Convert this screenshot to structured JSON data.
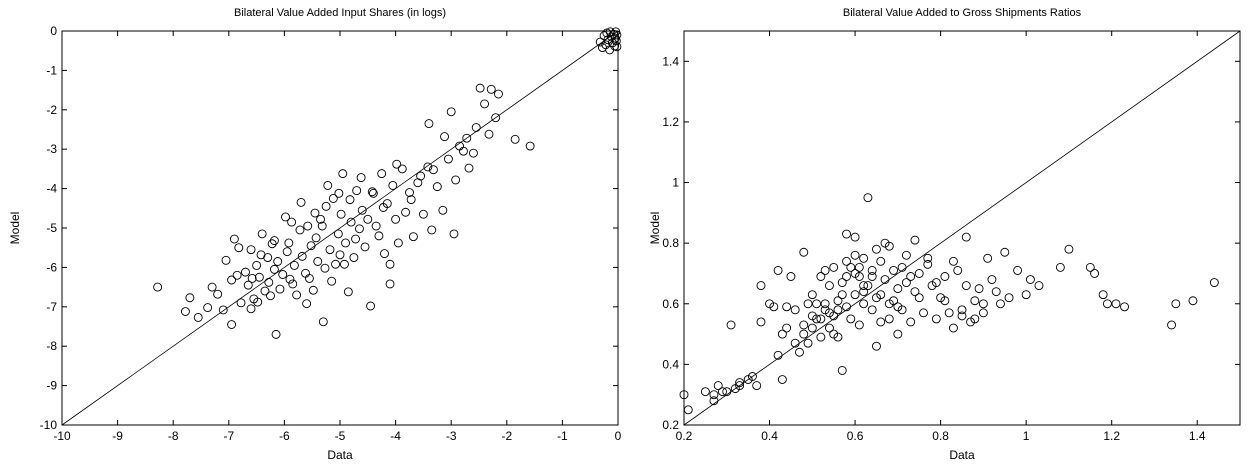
{
  "chart_data": [
    {
      "type": "scatter",
      "title": "Bilateral Value Added Input Shares (in logs)",
      "xlabel": "Data",
      "ylabel": "Model",
      "xlim": [
        -10,
        0
      ],
      "ylim": [
        -10,
        0
      ],
      "xticks": [
        -10,
        -9,
        -8,
        -7,
        -6,
        -5,
        -4,
        -3,
        -2,
        -1,
        0
      ],
      "yticks": [
        -10,
        -9,
        -8,
        -7,
        -6,
        -5,
        -4,
        -3,
        -2,
        -1,
        0
      ],
      "x_tick_labels": [
        "-10",
        "-9",
        "-8",
        "-7",
        "-6",
        "-5",
        "-4",
        "-3",
        "-2",
        "-1",
        "0"
      ],
      "y_tick_labels": [
        "-10",
        "-9",
        "-8",
        "-7",
        "-6",
        "-5",
        "-4",
        "-3",
        "-2",
        "-1",
        "0"
      ],
      "grid": false,
      "reference_line": "y = x",
      "marker": "open-circle",
      "points": [
        [
          -8.28,
          -6.5
        ],
        [
          -7.78,
          -7.12
        ],
        [
          -7.7,
          -6.77
        ],
        [
          -7.55,
          -7.27
        ],
        [
          -7.38,
          -7.02
        ],
        [
          -7.3,
          -6.5
        ],
        [
          -7.2,
          -6.68
        ],
        [
          -7.1,
          -7.08
        ],
        [
          -6.95,
          -7.45
        ],
        [
          -6.9,
          -5.28
        ],
        [
          -6.85,
          -6.2
        ],
        [
          -6.82,
          -5.5
        ],
        [
          -6.7,
          -6.12
        ],
        [
          -6.65,
          -6.45
        ],
        [
          -6.6,
          -5.55
        ],
        [
          -6.55,
          -6.8
        ],
        [
          -6.5,
          -5.95
        ],
        [
          -6.45,
          -6.25
        ],
        [
          -6.4,
          -5.15
        ],
        [
          -6.35,
          -6.6
        ],
        [
          -6.3,
          -5.75
        ],
        [
          -6.28,
          -6.38
        ],
        [
          -6.22,
          -5.4
        ],
        [
          -6.18,
          -6.05
        ],
        [
          -6.12,
          -5.85
        ],
        [
          -6.08,
          -6.55
        ],
        [
          -6.03,
          -6.18
        ],
        [
          -5.98,
          -4.72
        ],
        [
          -5.95,
          -5.6
        ],
        [
          -5.9,
          -6.3
        ],
        [
          -5.87,
          -4.85
        ],
        [
          -5.82,
          -5.95
        ],
        [
          -5.78,
          -6.7
        ],
        [
          -5.72,
          -5.05
        ],
        [
          -5.68,
          -5.72
        ],
        [
          -5.62,
          -6.15
        ],
        [
          -5.58,
          -4.95
        ],
        [
          -5.52,
          -5.45
        ],
        [
          -5.48,
          -6.58
        ],
        [
          -5.43,
          -5.25
        ],
        [
          -5.4,
          -5.85
        ],
        [
          -5.35,
          -4.78
        ],
        [
          -5.3,
          -7.38
        ],
        [
          -5.27,
          -6.02
        ],
        [
          -5.22,
          -3.92
        ],
        [
          -5.18,
          -5.55
        ],
        [
          -5.12,
          -4.25
        ],
        [
          -5.08,
          -5.92
        ],
        [
          -5.03,
          -5.15
        ],
        [
          -4.98,
          -4.65
        ],
        [
          -4.95,
          -3.62
        ],
        [
          -4.9,
          -5.38
        ],
        [
          -4.85,
          -6.62
        ],
        [
          -4.8,
          -4.85
        ],
        [
          -4.75,
          -5.75
        ],
        [
          -4.7,
          -4.05
        ],
        [
          -4.65,
          -5.02
        ],
        [
          -4.6,
          -4.55
        ],
        [
          -4.55,
          -5.48
        ],
        [
          -4.5,
          -4.78
        ],
        [
          -4.45,
          -6.98
        ],
        [
          -4.4,
          -4.12
        ],
        [
          -4.35,
          -4.95
        ],
        [
          -4.3,
          -5.2
        ],
        [
          -4.25,
          -3.62
        ],
        [
          -4.2,
          -5.65
        ],
        [
          -4.15,
          -4.38
        ],
        [
          -4.1,
          -5.92
        ],
        [
          -4.05,
          -3.92
        ],
        [
          -4.0,
          -4.78
        ],
        [
          -3.95,
          -5.38
        ],
        [
          -3.88,
          -3.5
        ],
        [
          -3.82,
          -4.6
        ],
        [
          -3.75,
          -4.1
        ],
        [
          -3.68,
          -5.22
        ],
        [
          -3.6,
          -3.85
        ],
        [
          -3.5,
          -4.65
        ],
        [
          -3.42,
          -3.45
        ],
        [
          -3.35,
          -5.05
        ],
        [
          -3.25,
          -3.95
        ],
        [
          -3.15,
          -4.55
        ],
        [
          -3.05,
          -3.25
        ],
        [
          -2.95,
          -5.15
        ],
        [
          -2.85,
          -2.92
        ],
        [
          -2.78,
          -3.05
        ],
        [
          -2.72,
          -2.72
        ],
        [
          -2.6,
          -3.1
        ],
        [
          -2.55,
          -2.45
        ],
        [
          -2.48,
          -1.45
        ],
        [
          -2.4,
          -1.85
        ],
        [
          -2.32,
          -2.62
        ],
        [
          -2.28,
          -1.48
        ],
        [
          -2.2,
          -2.2
        ],
        [
          -2.15,
          -1.6
        ],
        [
          -1.85,
          -2.75
        ],
        [
          -1.58,
          -2.92
        ],
        [
          -3.4,
          -2.35
        ],
        [
          -3.0,
          -2.05
        ],
        [
          -6.15,
          -7.7
        ],
        [
          -6.6,
          -7.05
        ],
        [
          -5.6,
          -6.92
        ],
        [
          -4.1,
          -6.42
        ],
        [
          -0.32,
          -0.28
        ],
        [
          -0.28,
          -0.42
        ],
        [
          -0.25,
          -0.12
        ],
        [
          -0.22,
          -0.35
        ],
        [
          -0.2,
          -0.05
        ],
        [
          -0.18,
          -0.22
        ],
        [
          -0.15,
          -0.48
        ],
        [
          -0.14,
          -0.02
        ],
        [
          -0.12,
          -0.15
        ],
        [
          -0.1,
          -0.3
        ],
        [
          -0.08,
          -0.08
        ],
        [
          -0.06,
          -0.38
        ],
        [
          -0.05,
          -0.18
        ],
        [
          -0.04,
          -0.02
        ],
        [
          -0.03,
          -0.25
        ],
        [
          -0.02,
          -0.1
        ],
        [
          -0.02,
          -0.4
        ],
        [
          -6.78,
          -6.9
        ],
        [
          -6.58,
          -6.28
        ],
        [
          -6.42,
          -5.68
        ],
        [
          -6.18,
          -5.32
        ],
        [
          -5.92,
          -5.38
        ],
        [
          -5.7,
          -4.35
        ],
        [
          -5.45,
          -4.62
        ],
        [
          -5.25,
          -4.45
        ],
        [
          -5.0,
          -5.68
        ],
        [
          -4.82,
          -4.28
        ],
        [
          -4.62,
          -3.72
        ],
        [
          -4.42,
          -4.08
        ],
        [
          -4.22,
          -4.48
        ],
        [
          -3.98,
          -3.38
        ],
        [
          -3.72,
          -4.28
        ],
        [
          -3.55,
          -3.68
        ],
        [
          -3.32,
          -3.52
        ],
        [
          -3.12,
          -2.68
        ],
        [
          -2.92,
          -3.78
        ],
        [
          -2.68,
          -3.48
        ],
        [
          -6.95,
          -6.32
        ],
        [
          -7.05,
          -5.82
        ],
        [
          -6.48,
          -6.88
        ],
        [
          -6.25,
          -6.72
        ],
        [
          -5.85,
          -6.42
        ],
        [
          -5.55,
          -6.28
        ],
        [
          -5.15,
          -6.35
        ],
        [
          -4.92,
          -5.92
        ],
        [
          -4.72,
          -5.28
        ],
        [
          -5.02,
          -4.12
        ],
        [
          -5.32,
          -4.95
        ]
      ]
    },
    {
      "type": "scatter",
      "title": "Bilateral Value Added to Gross Shipments Ratios",
      "xlabel": "Data",
      "ylabel": "Model",
      "xlim": [
        0.2,
        1.5
      ],
      "ylim": [
        0.2,
        1.5
      ],
      "xticks": [
        0.2,
        0.4,
        0.6,
        0.8,
        1.0,
        1.2,
        1.4
      ],
      "yticks": [
        0.2,
        0.4,
        0.6,
        0.8,
        1.0,
        1.2,
        1.4
      ],
      "x_tick_labels": [
        "0.2",
        "0.4",
        "0.6",
        "0.8",
        "1",
        "1.2",
        "1.4"
      ],
      "y_tick_labels": [
        "0.2",
        "0.4",
        "0.6",
        "0.8",
        "1",
        "1.2",
        "1.4"
      ],
      "grid": false,
      "reference_line": "y = x",
      "marker": "open-circle",
      "points": [
        [
          0.2,
          0.3
        ],
        [
          0.21,
          0.25
        ],
        [
          0.25,
          0.31
        ],
        [
          0.27,
          0.28
        ],
        [
          0.28,
          0.33
        ],
        [
          0.3,
          0.31
        ],
        [
          0.31,
          0.53
        ],
        [
          0.32,
          0.32
        ],
        [
          0.33,
          0.34
        ],
        [
          0.35,
          0.35
        ],
        [
          0.37,
          0.33
        ],
        [
          0.38,
          0.54
        ],
        [
          0.4,
          0.6
        ],
        [
          0.42,
          0.71
        ],
        [
          0.42,
          0.43
        ],
        [
          0.43,
          0.5
        ],
        [
          0.43,
          0.35
        ],
        [
          0.44,
          0.59
        ],
        [
          0.45,
          0.69
        ],
        [
          0.46,
          0.58
        ],
        [
          0.47,
          0.44
        ],
        [
          0.48,
          0.77
        ],
        [
          0.48,
          0.53
        ],
        [
          0.49,
          0.6
        ],
        [
          0.49,
          0.47
        ],
        [
          0.5,
          0.63
        ],
        [
          0.51,
          0.55
        ],
        [
          0.52,
          0.69
        ],
        [
          0.52,
          0.49
        ],
        [
          0.53,
          0.6
        ],
        [
          0.53,
          0.58
        ],
        [
          0.54,
          0.66
        ],
        [
          0.54,
          0.52
        ],
        [
          0.55,
          0.72
        ],
        [
          0.55,
          0.56
        ],
        [
          0.56,
          0.61
        ],
        [
          0.56,
          0.49
        ],
        [
          0.57,
          0.38
        ],
        [
          0.57,
          0.67
        ],
        [
          0.58,
          0.83
        ],
        [
          0.58,
          0.59
        ],
        [
          0.59,
          0.55
        ],
        [
          0.59,
          0.72
        ],
        [
          0.6,
          0.76
        ],
        [
          0.6,
          0.63
        ],
        [
          0.61,
          0.69
        ],
        [
          0.61,
          0.53
        ],
        [
          0.62,
          0.6
        ],
        [
          0.62,
          0.75
        ],
        [
          0.63,
          0.95
        ],
        [
          0.63,
          0.66
        ],
        [
          0.64,
          0.58
        ],
        [
          0.64,
          0.71
        ],
        [
          0.65,
          0.46
        ],
        [
          0.66,
          0.74
        ],
        [
          0.66,
          0.63
        ],
        [
          0.67,
          0.68
        ],
        [
          0.68,
          0.55
        ],
        [
          0.68,
          0.79
        ],
        [
          0.69,
          0.61
        ],
        [
          0.7,
          0.65
        ],
        [
          0.7,
          0.5
        ],
        [
          0.71,
          0.72
        ],
        [
          0.71,
          0.58
        ],
        [
          0.72,
          0.67
        ],
        [
          0.73,
          0.69
        ],
        [
          0.73,
          0.54
        ],
        [
          0.74,
          0.81
        ],
        [
          0.75,
          0.62
        ],
        [
          0.76,
          0.57
        ],
        [
          0.77,
          0.73
        ],
        [
          0.78,
          0.66
        ],
        [
          0.79,
          0.55
        ],
        [
          0.8,
          0.62
        ],
        [
          0.81,
          0.69
        ],
        [
          0.82,
          0.57
        ],
        [
          0.83,
          0.52
        ],
        [
          0.84,
          0.71
        ],
        [
          0.85,
          0.58
        ],
        [
          0.86,
          0.82
        ],
        [
          0.87,
          0.54
        ],
        [
          0.88,
          0.61
        ],
        [
          0.89,
          0.65
        ],
        [
          0.9,
          0.57
        ],
        [
          0.92,
          0.68
        ],
        [
          0.94,
          0.6
        ],
        [
          0.95,
          0.77
        ],
        [
          0.98,
          0.71
        ],
        [
          1.0,
          0.63
        ],
        [
          1.03,
          0.66
        ],
        [
          1.08,
          0.72
        ],
        [
          1.1,
          0.78
        ],
        [
          1.15,
          0.72
        ],
        [
          1.16,
          0.7
        ],
        [
          1.18,
          0.63
        ],
        [
          1.19,
          0.6
        ],
        [
          1.21,
          0.6
        ],
        [
          1.23,
          0.59
        ],
        [
          1.34,
          0.53
        ],
        [
          1.35,
          0.6
        ],
        [
          1.39,
          0.61
        ],
        [
          1.44,
          0.67
        ],
        [
          0.27,
          0.3
        ],
        [
          0.29,
          0.31
        ],
        [
          0.33,
          0.33
        ],
        [
          0.36,
          0.36
        ],
        [
          0.38,
          0.66
        ],
        [
          0.41,
          0.59
        ],
        [
          0.44,
          0.52
        ],
        [
          0.46,
          0.47
        ],
        [
          0.5,
          0.56
        ],
        [
          0.51,
          0.6
        ],
        [
          0.53,
          0.71
        ],
        [
          0.55,
          0.5
        ],
        [
          0.57,
          0.63
        ],
        [
          0.58,
          0.74
        ],
        [
          0.6,
          0.82
        ],
        [
          0.61,
          0.72
        ],
        [
          0.62,
          0.64
        ],
        [
          0.64,
          0.69
        ],
        [
          0.65,
          0.78
        ],
        [
          0.66,
          0.54
        ],
        [
          0.67,
          0.8
        ],
        [
          0.69,
          0.71
        ],
        [
          0.7,
          0.59
        ],
        [
          0.72,
          0.76
        ],
        [
          0.74,
          0.64
        ],
        [
          0.75,
          0.7
        ],
        [
          0.77,
          0.75
        ],
        [
          0.79,
          0.67
        ],
        [
          0.81,
          0.61
        ],
        [
          0.83,
          0.74
        ],
        [
          0.85,
          0.56
        ],
        [
          0.86,
          0.66
        ],
        [
          0.88,
          0.55
        ],
        [
          0.9,
          0.6
        ],
        [
          0.91,
          0.75
        ],
        [
          0.93,
          0.64
        ],
        [
          0.96,
          0.62
        ],
        [
          1.01,
          0.68
        ],
        [
          0.48,
          0.5
        ],
        [
          0.5,
          0.52
        ],
        [
          0.52,
          0.55
        ],
        [
          0.54,
          0.57
        ],
        [
          0.56,
          0.58
        ],
        [
          0.58,
          0.69
        ],
        [
          0.6,
          0.7
        ],
        [
          0.62,
          0.66
        ],
        [
          0.65,
          0.62
        ],
        [
          0.68,
          0.6
        ]
      ]
    }
  ]
}
